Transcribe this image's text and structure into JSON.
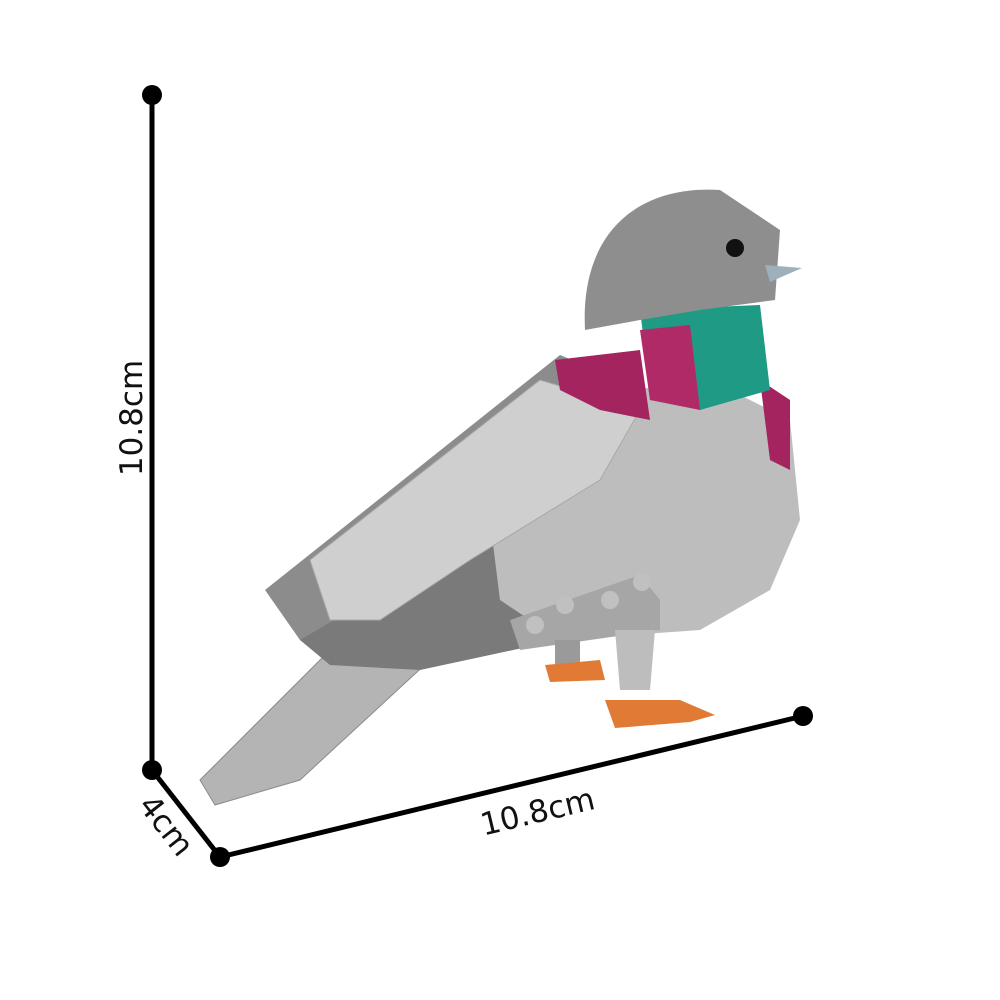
{
  "dimensions": {
    "height_label": "10.8cm",
    "depth_label": "4cm",
    "width_label": "10.8cm"
  },
  "colors": {
    "line": "#000000",
    "body_light": "#c8c8c8",
    "body_mid": "#a0a0a0",
    "body_dark": "#6e6e6e",
    "teal": "#1f9a84",
    "magenta": "#a3245f",
    "feet": "#e07a34"
  },
  "subject_icon": "brick-built-pigeon-model"
}
